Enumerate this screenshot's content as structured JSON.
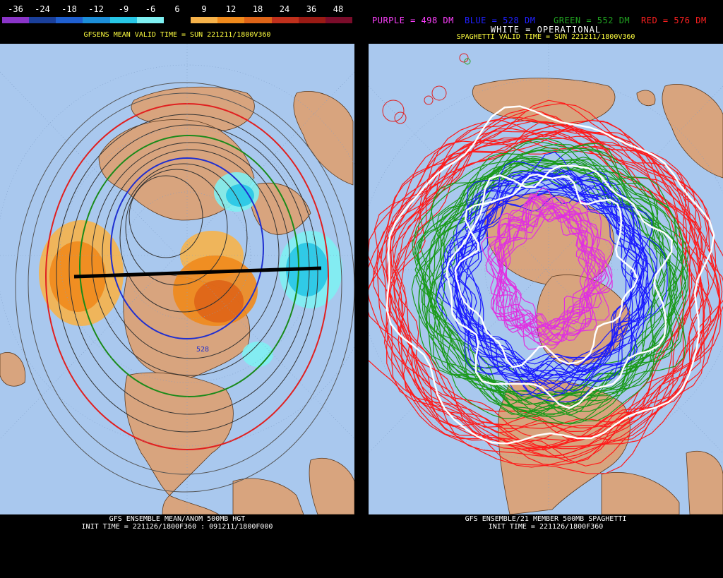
{
  "left_panel": {
    "legend": {
      "labels": [
        "-36",
        "-24",
        "-18",
        "-12",
        "-9",
        "-6",
        "6",
        "9",
        "12",
        "18",
        "24",
        "36",
        "48"
      ],
      "colors": [
        "#8a34c8",
        "#1a3f9a",
        "#1f5fd0",
        "#1c8ed8",
        "#27c6e6",
        "#7ef0f2",
        "#000000",
        "#f6b24a",
        "#f08a1c",
        "#de6418",
        "#c0301c",
        "#9a1a14",
        "#7a0c2a"
      ]
    },
    "title": "GFSENS MEAN VALID TIME = SUN 221211/1800V360",
    "contour_label": "528",
    "footer": {
      "line1": "GFS ENSEMBLE MEAN/ANOM 500MB HGT",
      "line2": "INIT TIME = 221126/1800F360 : 091211/1800F000"
    }
  },
  "right_panel": {
    "ensemble_legend": [
      {
        "text": "PURPLE = 498 DM",
        "color": "#ff40ff"
      },
      {
        "text": "BLUE = 528 DM",
        "color": "#2020ff"
      },
      {
        "text": "GREEN = 552 DM",
        "color": "#20a020"
      },
      {
        "text": "RED = 576 DM",
        "color": "#ff2020"
      }
    ],
    "operational": "WHITE = OPERATIONAL",
    "title": "SPAGHETTI VALID TIME = SUN 221211/1800V360",
    "footer": {
      "line1": "GFS ENSEMBLE/21 MEMBER 500MB SPAGHETTI",
      "line2": "INIT TIME = 221126/1800F360"
    }
  },
  "colors": {
    "ocean": "#a9c8ee",
    "land": "#d8a47e",
    "title": "#ffff40"
  }
}
